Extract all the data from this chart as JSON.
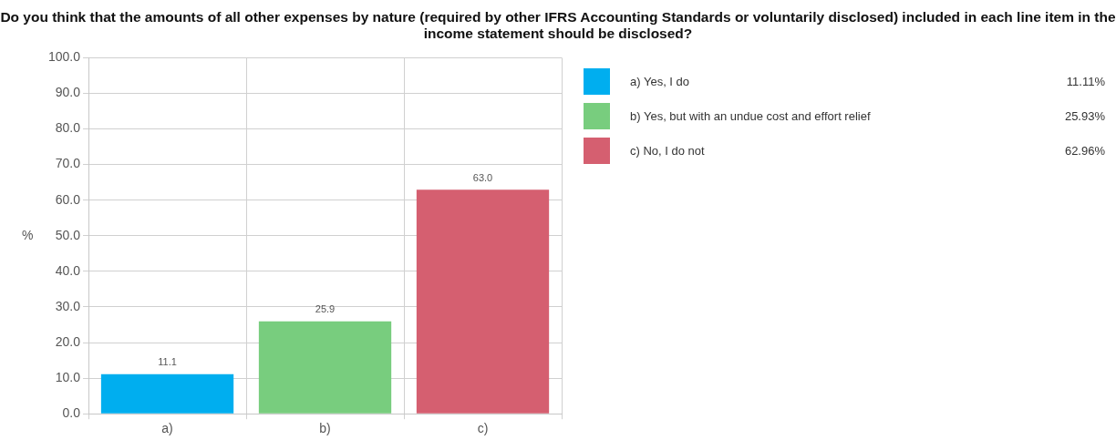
{
  "chart_data": {
    "type": "bar",
    "title": "Do you think that the amounts of all other expenses by nature (required by other IFRS Accounting Standards or voluntarily disclosed) included in each line item in the income statement should be disclosed?",
    "ylabel": "%",
    "categories": [
      "a)",
      "b)",
      "c)"
    ],
    "series": [
      {
        "name": "a) Yes, I do",
        "color": "#00aeef",
        "values": [
          11.11,
          null,
          null
        ],
        "value_labels": [
          "11.1",
          null,
          null
        ]
      },
      {
        "name": "b) Yes, but with an undue cost and effort relief",
        "color": "#78cd7e",
        "values": [
          null,
          25.93,
          null
        ],
        "value_labels": [
          null,
          "25.9",
          null
        ]
      },
      {
        "name": "c) No, I do not",
        "color": "#d55f70",
        "values": [
          null,
          null,
          62.96
        ],
        "value_labels": [
          null,
          null,
          "63.0"
        ]
      }
    ],
    "annotations": [
      "11.11%",
      "25.93%",
      "62.96%"
    ],
    "ylim": [
      0,
      100
    ],
    "yticks": [
      {
        "value": 0,
        "label": "0.0"
      },
      {
        "value": 10,
        "label": "10.0"
      },
      {
        "value": 20,
        "label": "20.0"
      },
      {
        "value": 30,
        "label": "30.0"
      },
      {
        "value": 40,
        "label": "40.0"
      },
      {
        "value": 50,
        "label": "50.0"
      },
      {
        "value": 60,
        "label": "60.0"
      },
      {
        "value": 70,
        "label": "70.0"
      },
      {
        "value": 80,
        "label": "80.0"
      },
      {
        "value": 90,
        "label": "90.0"
      },
      {
        "value": 100,
        "label": "100.0"
      }
    ],
    "grid": true,
    "legend": "right"
  }
}
